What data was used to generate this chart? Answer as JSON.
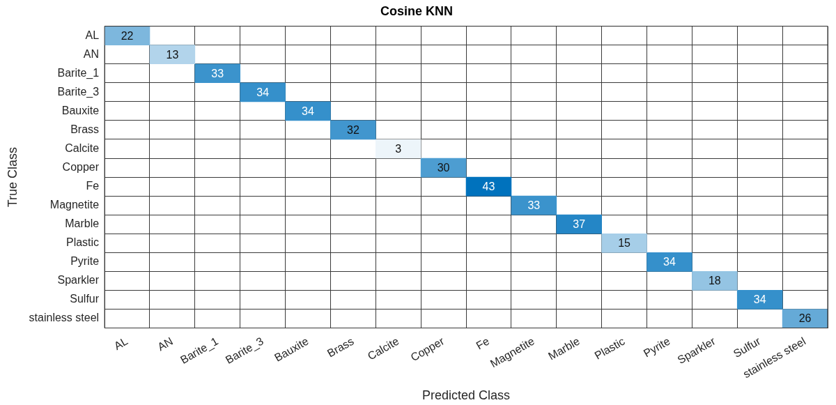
{
  "chart_data": {
    "type": "heatmap",
    "title": "Cosine KNN",
    "xlabel": "Predicted Class",
    "ylabel": "True Class",
    "categories": [
      "AL",
      "AN",
      "Barite_1",
      "Barite_3",
      "Bauxite",
      "Brass",
      "Calcite",
      "Copper",
      "Fe",
      "Magnetite",
      "Marble",
      "Plastic",
      "Pyrite",
      "Sparkler",
      "Sulfur",
      "stainless steel"
    ],
    "y_categories": [
      "AL",
      "AN",
      "Barite_1",
      "Barite_3",
      "Bauxite",
      "Brass",
      "Calcite",
      "Copper",
      "Fe",
      "Magnetite",
      "Marble",
      "Plastic",
      "Pyrite",
      "Sparkler",
      "Sulfur",
      "stainless steel"
    ],
    "cells": [
      [
        22,
        null,
        null,
        null,
        null,
        null,
        null,
        null,
        null,
        null,
        null,
        null,
        null,
        null,
        null,
        null
      ],
      [
        null,
        13,
        null,
        null,
        null,
        null,
        null,
        null,
        null,
        null,
        null,
        null,
        null,
        null,
        null,
        null
      ],
      [
        null,
        null,
        33,
        null,
        null,
        null,
        null,
        null,
        null,
        null,
        null,
        null,
        null,
        null,
        null,
        null
      ],
      [
        null,
        null,
        null,
        34,
        null,
        null,
        null,
        null,
        null,
        null,
        null,
        null,
        null,
        null,
        null,
        null
      ],
      [
        null,
        null,
        null,
        null,
        34,
        null,
        null,
        null,
        null,
        null,
        null,
        null,
        null,
        null,
        null,
        null
      ],
      [
        null,
        null,
        null,
        null,
        null,
        32,
        null,
        null,
        null,
        null,
        null,
        null,
        null,
        null,
        null,
        null
      ],
      [
        null,
        null,
        null,
        null,
        null,
        null,
        3,
        null,
        null,
        null,
        null,
        null,
        null,
        null,
        null,
        null
      ],
      [
        null,
        null,
        null,
        null,
        null,
        null,
        null,
        30,
        null,
        null,
        null,
        null,
        null,
        null,
        null,
        null
      ],
      [
        null,
        null,
        null,
        null,
        null,
        null,
        null,
        null,
        43,
        null,
        null,
        null,
        null,
        null,
        null,
        null
      ],
      [
        null,
        null,
        null,
        null,
        null,
        null,
        null,
        null,
        null,
        33,
        null,
        null,
        null,
        null,
        null,
        null
      ],
      [
        null,
        null,
        null,
        null,
        null,
        null,
        null,
        null,
        null,
        null,
        37,
        null,
        null,
        null,
        null,
        null
      ],
      [
        null,
        null,
        null,
        null,
        null,
        null,
        null,
        null,
        null,
        null,
        null,
        15,
        null,
        null,
        null,
        null
      ],
      [
        null,
        null,
        null,
        null,
        null,
        null,
        null,
        null,
        null,
        null,
        null,
        null,
        34,
        null,
        null,
        null
      ],
      [
        null,
        null,
        null,
        null,
        null,
        null,
        null,
        null,
        null,
        null,
        null,
        null,
        null,
        18,
        null,
        null
      ],
      [
        null,
        null,
        null,
        null,
        null,
        null,
        null,
        null,
        null,
        null,
        null,
        null,
        null,
        null,
        34,
        null
      ],
      [
        null,
        null,
        null,
        null,
        null,
        null,
        null,
        null,
        null,
        null,
        null,
        null,
        null,
        null,
        null,
        26
      ]
    ],
    "color": "#0072bd",
    "data_labels": true,
    "grid": true
  }
}
